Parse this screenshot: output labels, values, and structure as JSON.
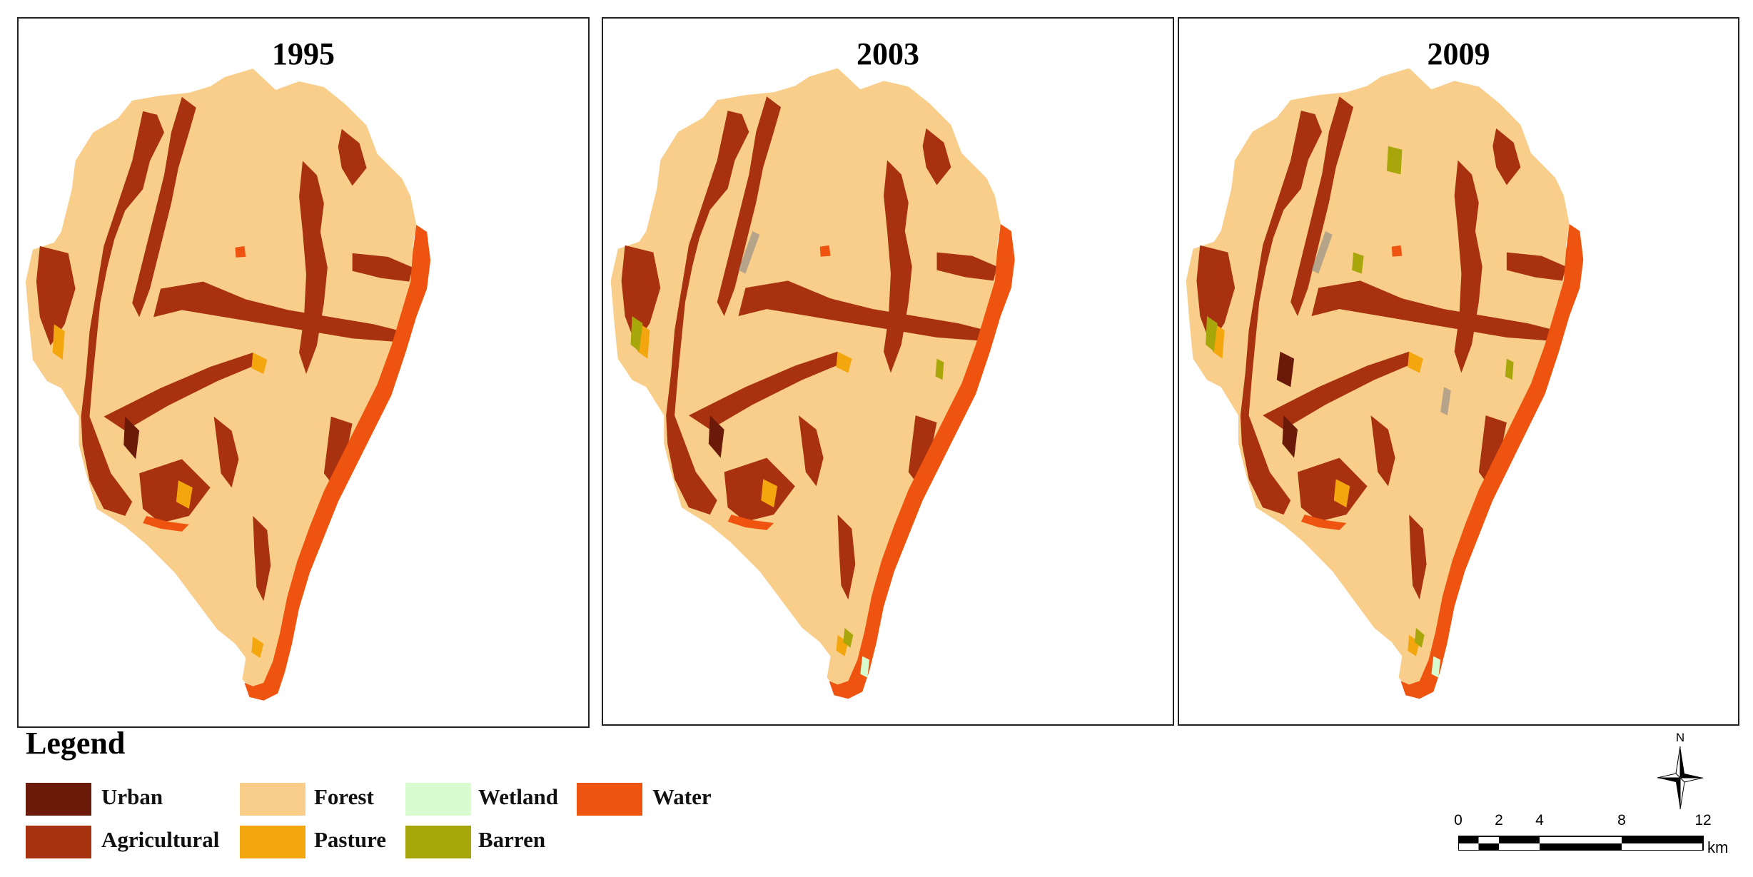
{
  "panels": [
    {
      "year": "1995"
    },
    {
      "year": "2003"
    },
    {
      "year": "2009"
    }
  ],
  "legend": {
    "title": "Legend",
    "items": [
      {
        "label": "Urban",
        "color": "#6B1A0A"
      },
      {
        "label": "Agricultural",
        "color": "#A8320F"
      },
      {
        "label": "Forest",
        "color": "#F8CE8A"
      },
      {
        "label": "Pasture",
        "color": "#F4A60E"
      },
      {
        "label": "Wetland",
        "color": "#D8FCCF"
      },
      {
        "label": "Barren",
        "color": "#A7A70B"
      },
      {
        "label": "Water",
        "color": "#EE5410"
      }
    ]
  },
  "scale_bar": {
    "ticks": [
      "0",
      "2",
      "4",
      "8",
      "12"
    ],
    "unit": "km"
  },
  "north_arrow": {
    "label": "N"
  }
}
